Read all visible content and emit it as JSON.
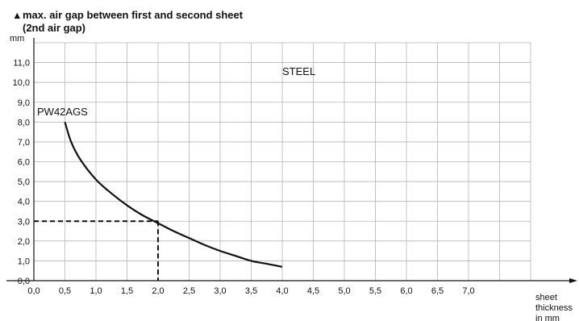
{
  "chart_data": {
    "type": "line",
    "title_line1": "max. air gap between first and second sheet",
    "title_line2": "(2nd air gap)",
    "y_unit": "mm",
    "xlabel": [
      "sheet",
      "thickness",
      "in mm"
    ],
    "xlim": [
      0,
      8
    ],
    "ylim": [
      0,
      12
    ],
    "x_ticks": [
      "0,0",
      "0,5",
      "1,0",
      "1,5",
      "2,0",
      "2,5",
      "3,0",
      "3,5",
      "4,0",
      "4,5",
      "5,0",
      "5,5",
      "6,0",
      "6,5",
      "7,0"
    ],
    "y_ticks": [
      "0,0",
      "1,0",
      "2,0",
      "3,0",
      "4,0",
      "5,0",
      "6,0",
      "7,0",
      "8,0",
      "9,0",
      "10,0",
      "11,0"
    ],
    "grid": true,
    "series": [
      {
        "name": "PW42AGS",
        "x": [
          0.5,
          0.6,
          0.75,
          1.0,
          1.25,
          1.5,
          1.75,
          2.0,
          2.25,
          2.5,
          2.75,
          3.0,
          3.25,
          3.5,
          3.75,
          4.0
        ],
        "y": [
          8.0,
          7.0,
          6.1,
          5.1,
          4.4,
          3.8,
          3.3,
          2.9,
          2.5,
          2.15,
          1.8,
          1.5,
          1.25,
          1.0,
          0.85,
          0.7
        ]
      }
    ],
    "annotations": {
      "material": "STEEL",
      "reference_point": {
        "x": 2.0,
        "y": 3.0
      }
    }
  }
}
